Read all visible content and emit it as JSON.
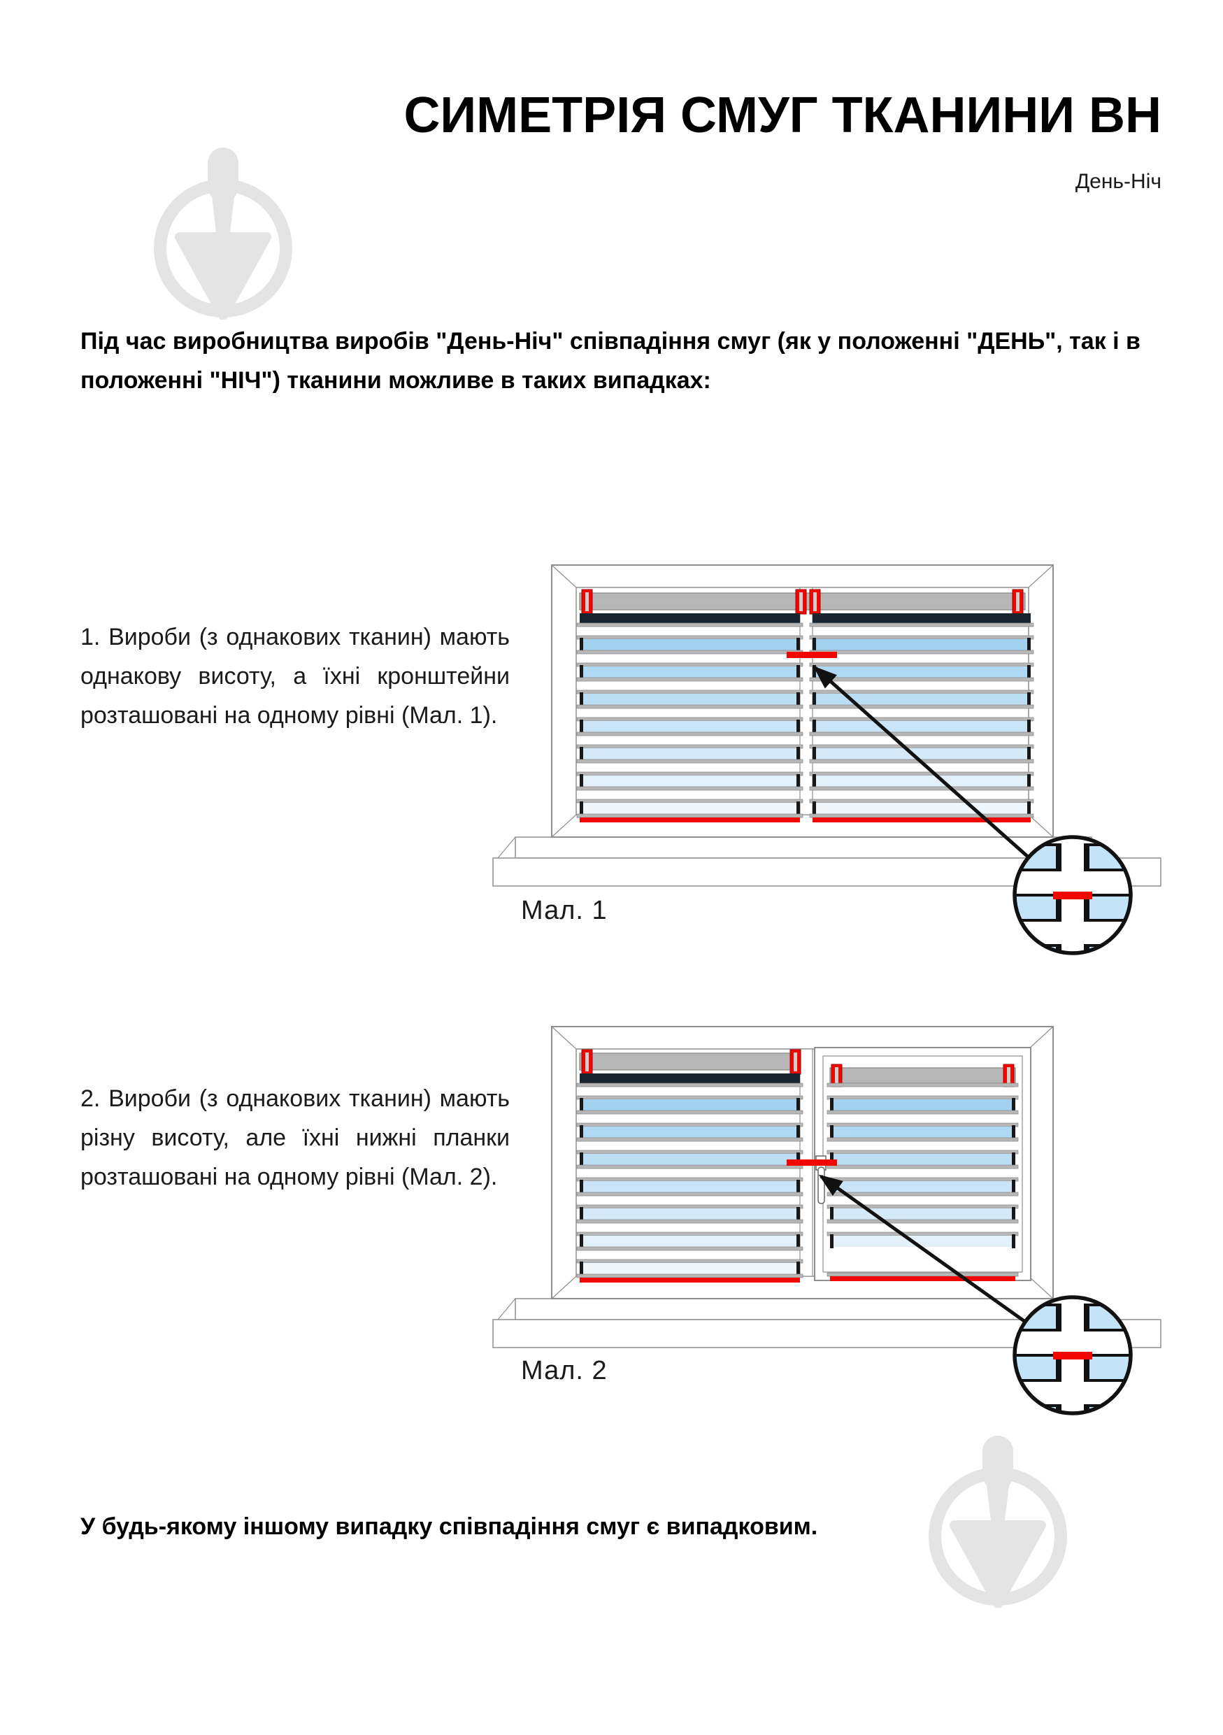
{
  "header": {
    "title": "СИМЕТРІЯ СМУГ ТКАНИНИ ВН",
    "subtitle": "День-Ніч"
  },
  "body": {
    "intro": "Під час виробництва виробів \"День-Ніч\" співпадіння смуг (як у положенні \"ДЕНЬ\", так і в положенні \"НІЧ\") тканини можливе в таких випадках:",
    "items": [
      {
        "text": "1. Вироби (з однакових тканин) мають однакову висоту, а їхні кронштейни розташовані на одному рівні (Мал. 1)."
      },
      {
        "text": "2. Вироби (з однакових тканин) мають різну висоту, але їхні нижні планки розташовані на одному рівні (Мал. 2)."
      }
    ],
    "footer": "У будь-якому іншому випадку співпадіння смуг є випадковим."
  },
  "figures": [
    {
      "caption": "Мал. 1"
    },
    {
      "caption": "Мал. 2"
    }
  ],
  "icons": {
    "watermark": "trowel-in-circle-logo",
    "arrow": "pointer-arrow",
    "magnifier": "zoom-detail-circle",
    "bracket": "mount-bracket"
  },
  "colors": {
    "accent_red": "#f10600",
    "stripe_blue_top": "#a3d2f0",
    "stripe_blue_bottom": "#eff7fd",
    "magnifier_blue": "#c2e3f8",
    "dark_stripe": "#18242e",
    "frame_gray": "#8f8f8f",
    "slat_gray": "#b7b7b7",
    "watermark_gray": "#e4e4e4",
    "text": "#111111"
  }
}
